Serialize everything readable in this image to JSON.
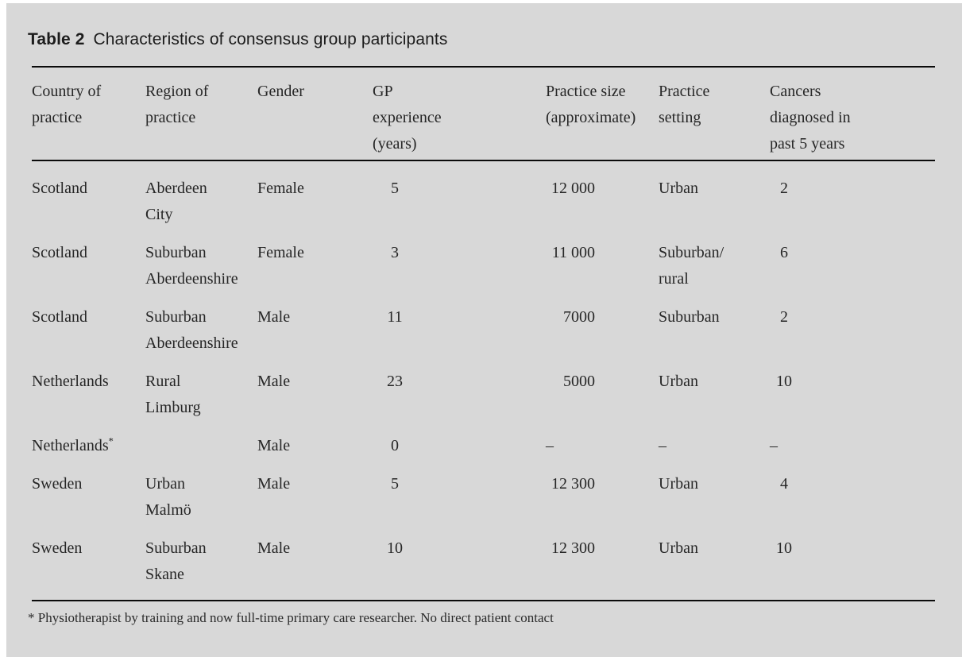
{
  "colors": {
    "panel_background": "#d8d8d8",
    "page_background": "#ffffff",
    "rule": "#0b0b0b",
    "text": "#262626"
  },
  "title": {
    "label": "Table 2",
    "text": "Characteristics of consensus group participants"
  },
  "table": {
    "columns": [
      {
        "id": "country",
        "header": "Country of\npractice"
      },
      {
        "id": "region",
        "header": "Region of\npractice"
      },
      {
        "id": "gender",
        "header": "Gender"
      },
      {
        "id": "gp-experience",
        "header": "GP\nexperience\n(years)"
      },
      {
        "id": "practice-size",
        "header": "Practice size\n(approximate)"
      },
      {
        "id": "practice-setting",
        "header": "Practice\nsetting"
      },
      {
        "id": "cancers",
        "header": "Cancers\ndiagnosed in\npast 5 years"
      }
    ],
    "rows": [
      [
        "Scotland",
        "Aberdeen\nCity",
        "Female",
        "5",
        "12 000",
        "Urban",
        "2"
      ],
      [
        "Scotland",
        "Suburban\nAberdeenshire",
        "Female",
        "3",
        "11 000",
        "Suburban/\nrural",
        "6"
      ],
      [
        "Scotland",
        "Suburban\nAberdeenshire",
        "Male",
        "11",
        "7000",
        "Suburban",
        "2"
      ],
      [
        "Netherlands",
        "Rural\nLimburg",
        "Male",
        "23",
        "5000",
        "Urban",
        "10"
      ],
      [
        "Netherlands*",
        "",
        "Male",
        "0",
        "–",
        "–",
        "–"
      ],
      [
        "Sweden",
        "Urban\nMalmö",
        "Male",
        "5",
        "12 300",
        "Urban",
        "4"
      ],
      [
        "Sweden",
        "Suburban\nSkane",
        "Male",
        "10",
        "12 300",
        "Urban",
        "10"
      ]
    ]
  },
  "footnote": "* Physiotherapist by training and now full-time primary care researcher. No direct patient contact"
}
